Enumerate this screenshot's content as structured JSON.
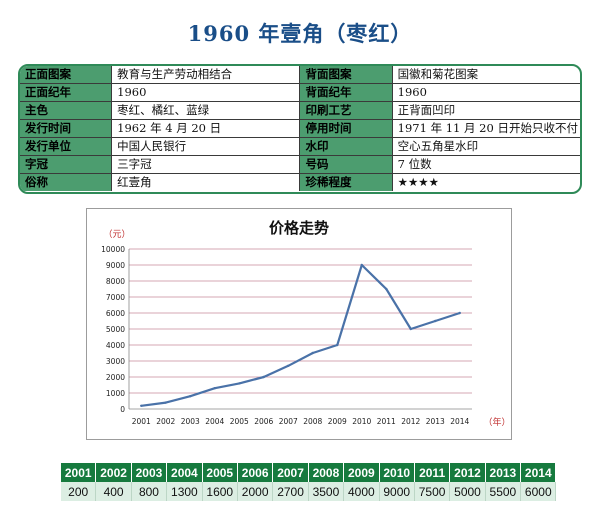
{
  "title": "1960 年壹角（枣红）",
  "info": [
    [
      "正面图案",
      "教育与生产劳动相结合",
      "背面图案",
      "国徽和菊花图案"
    ],
    [
      "正面纪年",
      "1960",
      "背面纪年",
      "1960"
    ],
    [
      "主色",
      "枣红、橘红、蓝绿",
      "印刷工艺",
      "正背面凹印"
    ],
    [
      "发行时间",
      "1962 年 4 月 20 日",
      "停用时间",
      "1971 年 11 月 20 日开始只收不付"
    ],
    [
      "发行单位",
      "中国人民银行",
      "水印",
      "空心五角星水印"
    ],
    [
      "字冠",
      "三字冠",
      "号码",
      "7 位数"
    ],
    [
      "俗称",
      "红壹角",
      "珍稀程度",
      "★★★★"
    ]
  ],
  "chart_data": {
    "type": "line",
    "title": "价格走势",
    "ylabel": "（元）",
    "xlabel": "（年）",
    "x": [
      "2001",
      "2002",
      "2003",
      "2004",
      "2005",
      "2006",
      "2007",
      "2008",
      "2009",
      "2010",
      "2011",
      "2012",
      "2013",
      "2014"
    ],
    "values": [
      200,
      400,
      800,
      1300,
      1600,
      2000,
      2700,
      3500,
      4000,
      9000,
      7500,
      5000,
      5500,
      6000
    ],
    "yticks": [
      0,
      1000,
      2000,
      3000,
      4000,
      5000,
      6000,
      7000,
      8000,
      9000,
      10000
    ],
    "ylim": [
      0,
      10000
    ],
    "grid": true,
    "line_color": "#4a72a8",
    "grid_color": "#c98a9a"
  },
  "price_table": {
    "years": [
      "2001",
      "2002",
      "2003",
      "2004",
      "2005",
      "2006",
      "2007",
      "2008",
      "2009",
      "2010",
      "2011",
      "2012",
      "2013",
      "2014"
    ],
    "prices": [
      "200",
      "400",
      "800",
      "1300",
      "1600",
      "2000",
      "2700",
      "3500",
      "4000",
      "9000",
      "7500",
      "5000",
      "5500",
      "6000"
    ]
  }
}
